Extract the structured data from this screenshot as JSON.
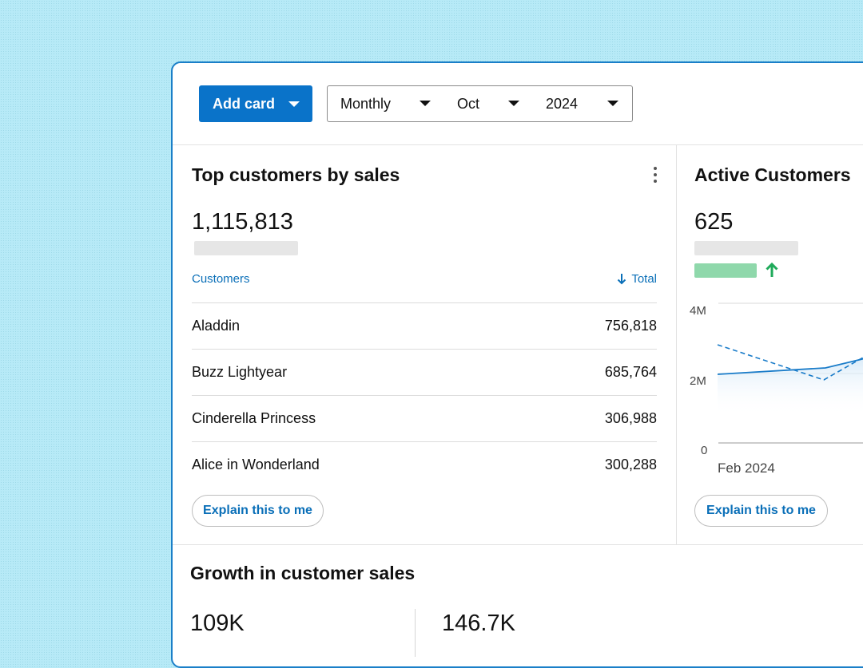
{
  "toolbar": {
    "add_card_label": "Add card",
    "period": "Monthly",
    "month": "Oct",
    "year": "2024"
  },
  "top_customers": {
    "title": "Top customers by sales",
    "total": "1,115,813",
    "col_customers": "Customers",
    "col_total": "Total",
    "rows": [
      {
        "name": "Aladdin",
        "value": "756,818"
      },
      {
        "name": "Buzz Lightyear",
        "value": "685,764"
      },
      {
        "name": "Cinderella Princess",
        "value": "306,988"
      },
      {
        "name": "Alice in Wonderland",
        "value": "300,288"
      }
    ],
    "explain_label": "Explain this to me"
  },
  "active_customers": {
    "title": "Active Customers",
    "value": "625",
    "trend_color": "#1faa5a",
    "chart": {
      "y_ticks": [
        "4M",
        "2M",
        "0"
      ],
      "x_label": "Feb 2024"
    },
    "explain_label": "Explain this to me"
  },
  "growth": {
    "title": "Growth in customer sales",
    "value_1": "109K",
    "value_2": "146.7K"
  },
  "colors": {
    "accent": "#0a73c9",
    "link": "#0a6fb8",
    "border": "#1a7fc8"
  }
}
